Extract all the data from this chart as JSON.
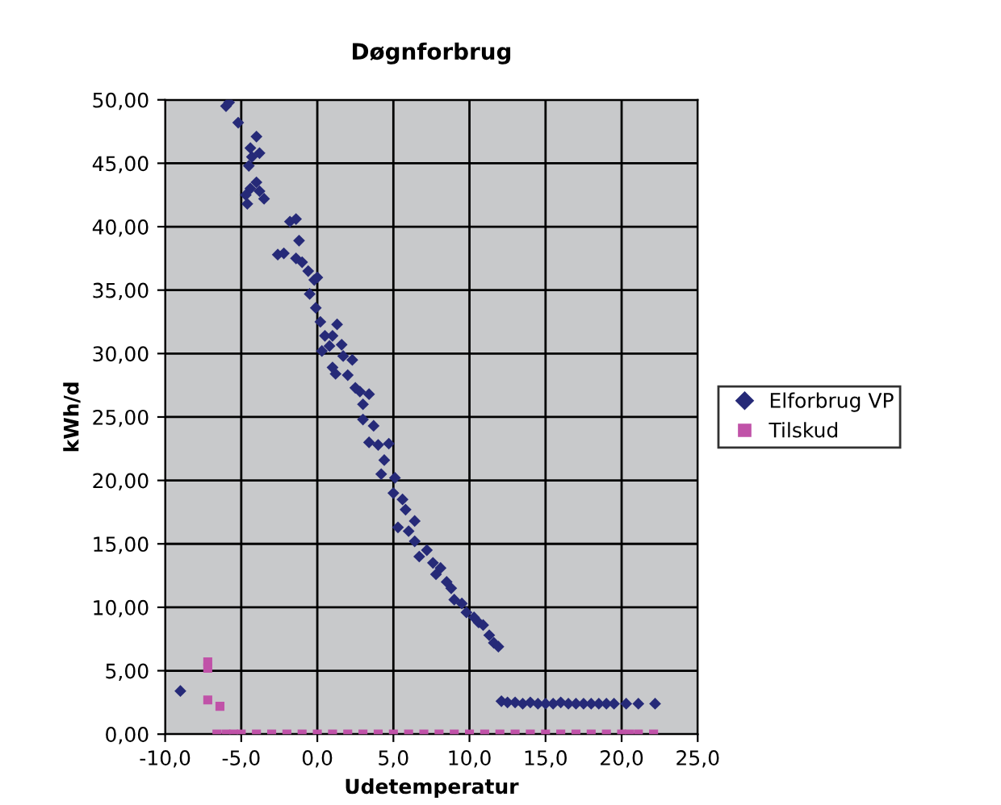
{
  "chart_data": {
    "type": "scatter",
    "title": "Døgnforbrug",
    "xlabel": "Udetemperatur",
    "ylabel": "kWh/d",
    "xlim": [
      -10,
      25
    ],
    "ylim": [
      0,
      50
    ],
    "xticks": [
      {
        "value": -10,
        "label": "-10,0"
      },
      {
        "value": -5,
        "label": "-5,0"
      },
      {
        "value": 0,
        "label": "0,0"
      },
      {
        "value": 5,
        "label": "5,0"
      },
      {
        "value": 10,
        "label": "10,0"
      },
      {
        "value": 15,
        "label": "15,0"
      },
      {
        "value": 20,
        "label": "20,0"
      },
      {
        "value": 25,
        "label": "25,0"
      }
    ],
    "yticks": [
      {
        "value": 0,
        "label": "0,00"
      },
      {
        "value": 5,
        "label": "5,00"
      },
      {
        "value": 10,
        "label": "10,00"
      },
      {
        "value": 15,
        "label": "15,00"
      },
      {
        "value": 20,
        "label": "20,00"
      },
      {
        "value": 25,
        "label": "25,00"
      },
      {
        "value": 30,
        "label": "30,00"
      },
      {
        "value": 35,
        "label": "35,00"
      },
      {
        "value": 40,
        "label": "40,00"
      },
      {
        "value": 45,
        "label": "45,00"
      },
      {
        "value": 50,
        "label": "50,00"
      }
    ],
    "grid": true,
    "legend": "right",
    "series": [
      {
        "name": "Elforbrug VP",
        "color": "#262a78",
        "marker": "diamond",
        "x": [
          -9.0,
          -6.0,
          -5.8,
          -5.2,
          -4.4,
          -4.0,
          -4.3,
          -4.5,
          -3.8,
          -4.4,
          -4.0,
          -4.7,
          -3.8,
          -3.5,
          -4.6,
          -2.6,
          -2.2,
          -1.8,
          -1.4,
          -1.2,
          -1.4,
          -1.0,
          -0.6,
          -0.2,
          0.0,
          -0.5,
          -0.1,
          0.2,
          0.5,
          0.3,
          0.8,
          1.0,
          1.3,
          1.6,
          1.7,
          1.2,
          1.0,
          2.0,
          2.3,
          2.5,
          2.8,
          3.0,
          3.4,
          3.0,
          3.7,
          3.4,
          4.0,
          4.4,
          4.7,
          4.2,
          5.1,
          5.0,
          5.6,
          5.8,
          5.3,
          6.0,
          6.4,
          6.4,
          6.7,
          7.2,
          7.6,
          7.8,
          8.1,
          8.5,
          8.8,
          9.0,
          9.5,
          9.8,
          10.3,
          10.6,
          10.9,
          11.3,
          11.6,
          11.9,
          12.1,
          12.5,
          13.0,
          13.5,
          14.0,
          14.5,
          15.0,
          15.5,
          16.0,
          16.5,
          17.0,
          17.5,
          18.0,
          18.5,
          19.0,
          19.5,
          20.3,
          21.1,
          22.2
        ],
        "values": [
          3.4,
          49.5,
          49.8,
          48.2,
          46.2,
          47.1,
          45.5,
          44.8,
          45.8,
          43.0,
          43.5,
          42.5,
          42.8,
          42.2,
          41.8,
          37.8,
          37.9,
          40.4,
          40.6,
          38.9,
          37.5,
          37.2,
          36.5,
          35.8,
          36.0,
          34.7,
          33.6,
          32.5,
          31.4,
          30.2,
          30.6,
          31.4,
          32.3,
          30.7,
          29.8,
          28.4,
          28.9,
          28.3,
          29.5,
          27.3,
          27.0,
          26.0,
          26.8,
          24.8,
          24.3,
          23.0,
          22.8,
          21.6,
          22.9,
          20.5,
          20.2,
          19.0,
          18.5,
          17.7,
          16.3,
          16.0,
          16.8,
          15.2,
          14.0,
          14.5,
          13.5,
          12.6,
          13.1,
          12.0,
          11.5,
          10.6,
          10.3,
          9.6,
          9.2,
          8.8,
          8.6,
          7.8,
          7.2,
          6.9,
          2.6,
          2.5,
          2.5,
          2.4,
          2.5,
          2.4,
          2.4,
          2.4,
          2.5,
          2.4,
          2.4,
          2.4,
          2.4,
          2.4,
          2.4,
          2.4,
          2.4,
          2.4,
          2.4
        ]
      },
      {
        "name": "Tilskud",
        "color": "#c052a8",
        "marker": "square",
        "x": [
          -7.2,
          -7.2,
          -7.2,
          -6.4,
          -6.6,
          -6.0,
          -5.5,
          -5.0,
          -4.0,
          -3.0,
          -2.0,
          -1.0,
          0.0,
          1.0,
          2.0,
          3.0,
          4.0,
          5.0,
          6.0,
          7.0,
          8.0,
          9.0,
          10.0,
          11.0,
          12.0,
          13.0,
          14.0,
          15.0,
          16.0,
          17.0,
          18.0,
          19.0,
          20.0,
          20.5,
          21.1,
          22.1
        ],
        "values": [
          5.7,
          5.2,
          2.7,
          2.2,
          0,
          0,
          0,
          0,
          0,
          0,
          0,
          0,
          0,
          0,
          0,
          0,
          0,
          0,
          0,
          0,
          0,
          0,
          0,
          0,
          0,
          0,
          0,
          0,
          0,
          0,
          0,
          0,
          0,
          0,
          0,
          0
        ]
      }
    ]
  }
}
